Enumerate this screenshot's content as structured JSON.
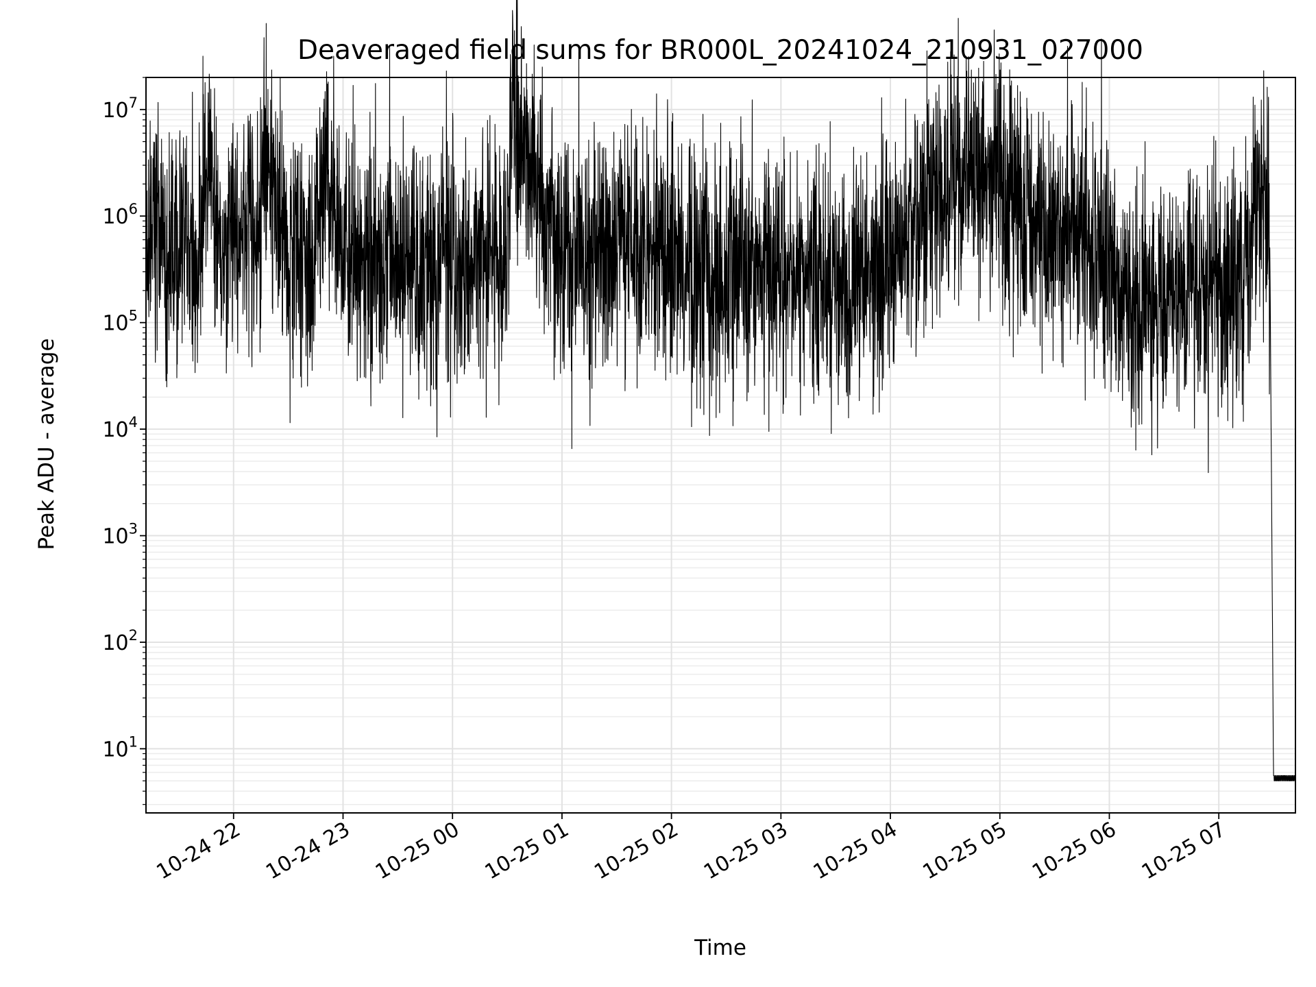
{
  "chart_data": {
    "type": "line",
    "title": "Deaveraged field sums for BR000L_20241024_210931_027000",
    "xlabel": "Time",
    "ylabel": "Peak ADU - average",
    "yscale": "log",
    "grid": true,
    "xlim": [
      "10-24 21:12",
      "10-25 07:42"
    ],
    "ylim": [
      2.5,
      20000000
    ],
    "x_ticks": [
      "10-24 22",
      "10-24 23",
      "10-25 00",
      "10-25 01",
      "10-25 02",
      "10-25 03",
      "10-25 04",
      "10-25 05",
      "10-25 06",
      "10-25 07"
    ],
    "y_ticks": [
      {
        "base": "10",
        "exp": "1"
      },
      {
        "base": "10",
        "exp": "2"
      },
      {
        "base": "10",
        "exp": "3"
      },
      {
        "base": "10",
        "exp": "4"
      },
      {
        "base": "10",
        "exp": "5"
      },
      {
        "base": "10",
        "exp": "6"
      },
      {
        "base": "10",
        "exp": "7"
      }
    ],
    "line_color": "#000000",
    "series": [
      {
        "x": [
          "10-24 21:12",
          "10-24 21:16",
          "10-24 21:20",
          "10-24 21:30",
          "10-24 21:40",
          "10-24 21:47",
          "10-24 21:50",
          "10-24 22:00",
          "10-24 22:15",
          "10-24 22:16",
          "10-24 22:30",
          "10-24 22:45",
          "10-24 22:50",
          "10-24 23:00",
          "10-24 23:30",
          "10-25 00:00",
          "10-25 00:30",
          "10-25 00:32",
          "10-25 01:00",
          "10-25 01:30",
          "10-25 02:00",
          "10-25 02:10",
          "10-25 02:20",
          "10-25 02:40",
          "10-25 03:00",
          "10-25 03:20",
          "10-25 03:30",
          "10-25 03:50",
          "10-25 04:10",
          "10-25 04:30",
          "10-25 04:40",
          "10-25 05:00",
          "10-25 05:20",
          "10-25 05:40",
          "10-25 06:00",
          "10-25 06:15",
          "10-25 06:30",
          "10-25 06:45",
          "10-25 07:00",
          "10-25 07:15",
          "10-25 07:20",
          "10-25 07:24",
          "10-25 07:28",
          "10-25 07:30",
          "10-25 07:42"
        ],
        "y": [
          300000,
          1400000,
          400000,
          500000,
          400000,
          4500000,
          500000,
          650000,
          600000,
          4700000,
          450000,
          350000,
          4000000,
          350000,
          400000,
          350000,
          450000,
          10000000,
          400000,
          450000,
          500000,
          250000,
          300000,
          250000,
          300000,
          250000,
          200000,
          300000,
          700000,
          1500000,
          2500000,
          1800000,
          800000,
          700000,
          300000,
          150000,
          150000,
          200000,
          200000,
          250000,
          1300000,
          1100000,
          500000,
          5,
          5
        ]
      }
    ]
  }
}
